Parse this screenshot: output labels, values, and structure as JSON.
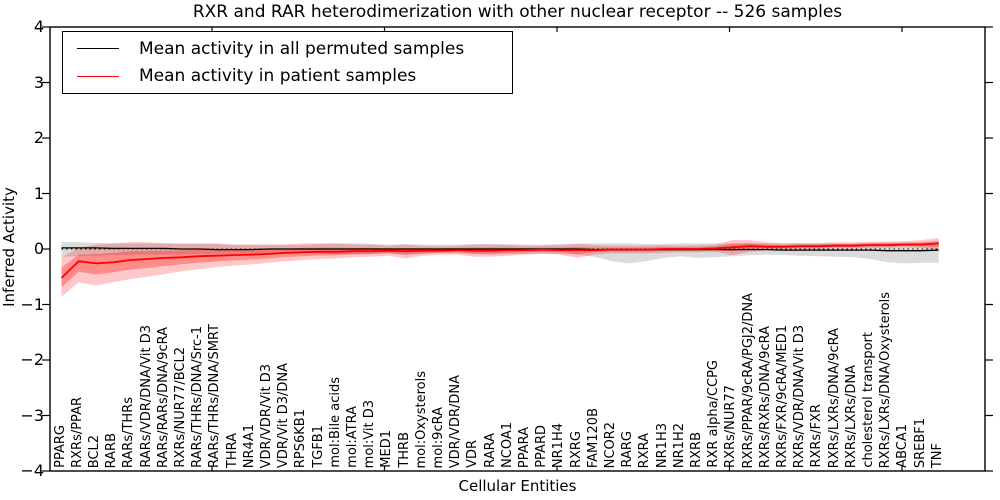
{
  "page": {
    "background": "#ffffff"
  },
  "chart_data": {
    "type": "line",
    "title": "RXR and RAR heterodimerization with other nuclear receptor -- 526 samples",
    "xlabel": "Cellular Entities",
    "ylabel": "Inferred Activity",
    "ylim": [
      -4,
      4
    ],
    "grid": false,
    "legend_position": "upper left",
    "zero_baseline": {
      "value": 0,
      "style": "dotted",
      "color": "#000000"
    },
    "y_ticks": [
      {
        "label": "4",
        "value": 4
      },
      {
        "label": "3",
        "value": 3
      },
      {
        "label": "2",
        "value": 2
      },
      {
        "label": "1",
        "value": 1
      },
      {
        "label": "0",
        "value": 0
      },
      {
        "label": "−1",
        "value": -1
      },
      {
        "label": "−2",
        "value": -2
      },
      {
        "label": "−3",
        "value": -3
      },
      {
        "label": "−4",
        "value": -4
      }
    ],
    "categories": [
      "PPARG",
      "RXRs/PPAR",
      "BCL2",
      "RARB",
      "RARs/THRs",
      "RARs/VDR/DNA/Vit D3",
      "RARs/RARs/DNA/9cRA",
      "RXRs/NUR77/BCL2",
      "RARs/THRs/DNA/Src-1",
      "RARs/THRs/DNA/SMRT",
      "THRA",
      "NR4A1",
      "VDR/VDR/Vit D3",
      "VDR/Vit D3/DNA",
      "RPS6KB1",
      "TGFB1",
      "mol:Bile acids",
      "mol:ATRA",
      "mol:Vit D3",
      "MED1",
      "THRB",
      "mol:Oxysterols",
      "mol:9cRA",
      "VDR/VDR/DNA",
      "VDR",
      "RARA",
      "NCOA1",
      "PPARA",
      "PPARD",
      "NR1H4",
      "RXRG",
      "FAM120B",
      "NCOR2",
      "RARG",
      "RXRA",
      "NR1H3",
      "NR1H2",
      "RXRB",
      "RXR alpha/CCPG",
      "RXRs/NUR77",
      "RXRs/PPAR/9cRA/PGJ2/DNA",
      "RXRs/RXRs/DNA/9cRA",
      "RXRs/FXR/9cRA/MED1",
      "RXRs/VDR/DNA/Vit D3",
      "RXRs/FXR",
      "RXRs/LXRs/DNA/9cRA",
      "RXRs/LXRs/DNA",
      "cholesterol transport",
      "RXRs/LXRs/DNA/Oxysterols",
      "ABCA1",
      "SREBF1",
      "TNF"
    ],
    "series": [
      {
        "name": "Mean activity in all permuted samples",
        "color": "#000000",
        "band_color": "rgba(0,0,0,0.14)",
        "values": [
          0.02,
          0.02,
          0.02,
          0.01,
          0.01,
          0.01,
          0.01,
          0.0,
          0.0,
          -0.01,
          -0.01,
          -0.01,
          0.0,
          0.0,
          0.0,
          0.0,
          0.0,
          0.0,
          0.0,
          0.0,
          0.0,
          0.0,
          0.0,
          0.0,
          0.0,
          0.0,
          0.0,
          0.0,
          0.0,
          0.0,
          0.0,
          -0.01,
          -0.01,
          -0.01,
          -0.01,
          -0.01,
          -0.01,
          -0.01,
          -0.01,
          -0.01,
          -0.01,
          -0.01,
          -0.02,
          -0.02,
          -0.02,
          -0.02,
          -0.02,
          -0.02,
          -0.03,
          -0.03,
          -0.03,
          -0.02
        ],
        "band_low": [
          -0.14,
          -0.13,
          -0.12,
          -0.11,
          -0.11,
          -0.1,
          -0.1,
          -0.1,
          -0.09,
          -0.09,
          -0.09,
          -0.08,
          -0.08,
          -0.08,
          -0.07,
          -0.08,
          -0.09,
          -0.1,
          -0.09,
          -0.08,
          -0.1,
          -0.09,
          -0.08,
          -0.08,
          -0.09,
          -0.1,
          -0.09,
          -0.09,
          -0.08,
          -0.09,
          -0.1,
          -0.14,
          -0.22,
          -0.26,
          -0.22,
          -0.16,
          -0.13,
          -0.16,
          -0.15,
          -0.13,
          -0.11,
          -0.1,
          -0.11,
          -0.12,
          -0.13,
          -0.14,
          -0.15,
          -0.18,
          -0.24,
          -0.26,
          -0.25,
          -0.25
        ],
        "band_high": [
          0.12,
          0.12,
          0.11,
          0.1,
          0.1,
          0.1,
          0.1,
          0.09,
          0.09,
          0.09,
          0.08,
          0.08,
          0.08,
          0.08,
          0.07,
          0.09,
          0.1,
          0.1,
          0.09,
          0.08,
          0.09,
          0.08,
          0.08,
          0.08,
          0.09,
          0.09,
          0.09,
          0.08,
          0.08,
          0.09,
          0.1,
          0.1,
          0.1,
          0.1,
          0.09,
          0.09,
          0.1,
          0.1,
          0.1,
          0.1,
          0.1,
          0.1,
          0.1,
          0.1,
          0.1,
          0.1,
          0.1,
          0.11,
          0.12,
          0.12,
          0.11,
          0.12
        ]
      },
      {
        "name": "Mean activity in patient samples",
        "color": "#ff0000",
        "band_color": "rgba(255,0,0,0.22)",
        "values": [
          -0.52,
          -0.22,
          -0.26,
          -0.24,
          -0.2,
          -0.18,
          -0.16,
          -0.15,
          -0.13,
          -0.12,
          -0.11,
          -0.1,
          -0.09,
          -0.07,
          -0.06,
          -0.05,
          -0.05,
          -0.04,
          -0.04,
          -0.03,
          -0.04,
          -0.03,
          -0.03,
          -0.02,
          -0.03,
          -0.03,
          -0.02,
          -0.02,
          -0.01,
          -0.02,
          -0.02,
          -0.02,
          -0.01,
          -0.01,
          -0.01,
          0.0,
          0.0,
          0.0,
          0.01,
          0.03,
          0.05,
          0.04,
          0.04,
          0.05,
          0.05,
          0.06,
          0.06,
          0.07,
          0.07,
          0.08,
          0.08,
          0.1
        ],
        "band_low": [
          -0.86,
          -0.6,
          -0.66,
          -0.6,
          -0.54,
          -0.5,
          -0.45,
          -0.4,
          -0.36,
          -0.33,
          -0.3,
          -0.28,
          -0.25,
          -0.22,
          -0.2,
          -0.18,
          -0.17,
          -0.15,
          -0.14,
          -0.12,
          -0.17,
          -0.12,
          -0.1,
          -0.1,
          -0.14,
          -0.14,
          -0.12,
          -0.1,
          -0.09,
          -0.1,
          -0.16,
          -0.1,
          -0.08,
          -0.08,
          -0.08,
          -0.07,
          -0.06,
          -0.06,
          -0.05,
          -0.11,
          -0.05,
          -0.02,
          -0.01,
          0.0,
          0.0,
          0.01,
          0.01,
          0.02,
          0.02,
          0.03,
          0.02,
          -0.02
        ],
        "band_high": [
          -0.15,
          0.02,
          0.08,
          0.1,
          0.12,
          0.12,
          0.1,
          0.1,
          0.1,
          0.1,
          0.08,
          0.08,
          0.08,
          0.08,
          0.1,
          0.1,
          0.1,
          0.08,
          0.08,
          0.06,
          0.08,
          0.06,
          0.05,
          0.06,
          0.08,
          0.08,
          0.07,
          0.06,
          0.06,
          0.07,
          0.09,
          0.07,
          0.06,
          0.06,
          0.06,
          0.07,
          0.06,
          0.07,
          0.08,
          0.16,
          0.16,
          0.12,
          0.1,
          0.11,
          0.11,
          0.12,
          0.12,
          0.13,
          0.13,
          0.14,
          0.16,
          0.2
        ]
      }
    ]
  }
}
